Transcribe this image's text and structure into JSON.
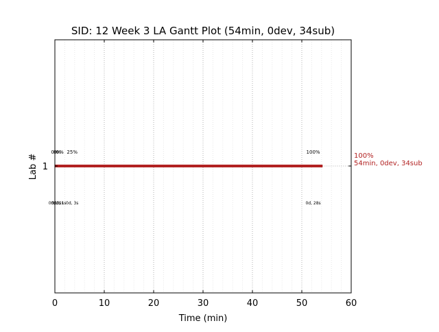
{
  "chart_data": {
    "type": "gantt",
    "title": "SID: 12 Week 3 LA Gantt Plot (54min, 0dev, 34sub)",
    "xlabel": "Time (min)",
    "ylabel": "Lab #",
    "xlim": [
      0,
      60
    ],
    "x_ticks": [
      0,
      10,
      20,
      30,
      40,
      50,
      60
    ],
    "x_tick_labels": [
      "0",
      "10",
      "20",
      "30",
      "40",
      "50",
      "60"
    ],
    "y_categories": [
      "1"
    ],
    "grid": "vertical dotted (major and minor)",
    "colors": {
      "bar": "#b22222",
      "label": "#b22222",
      "grid_major": "#b0b0b0",
      "grid_minor": "#e6e6e6"
    },
    "bars": [
      {
        "lab": "1",
        "start": 0,
        "end": 54.2
      }
    ],
    "percent_markers": [
      {
        "x": 0.0,
        "text": "0%"
      },
      {
        "x": 0.5,
        "text": "0%"
      },
      {
        "x": 1.0,
        "text": "0%"
      },
      {
        "x": 3.5,
        "text": "25%"
      },
      {
        "x": 52.3,
        "text": "100%"
      }
    ],
    "time_markers": [
      {
        "x": 0.0,
        "text": "0d, 0s"
      },
      {
        "x": 0.5,
        "text": "0d, 1s"
      },
      {
        "x": 1.0,
        "text": "0d, 1s"
      },
      {
        "x": 3.5,
        "text": "0d, 3s"
      },
      {
        "x": 52.3,
        "text": "0d, 28s"
      }
    ],
    "end_label": {
      "lab": "1",
      "lines": [
        "100%",
        "54min, 0dev, 34sub"
      ]
    }
  }
}
